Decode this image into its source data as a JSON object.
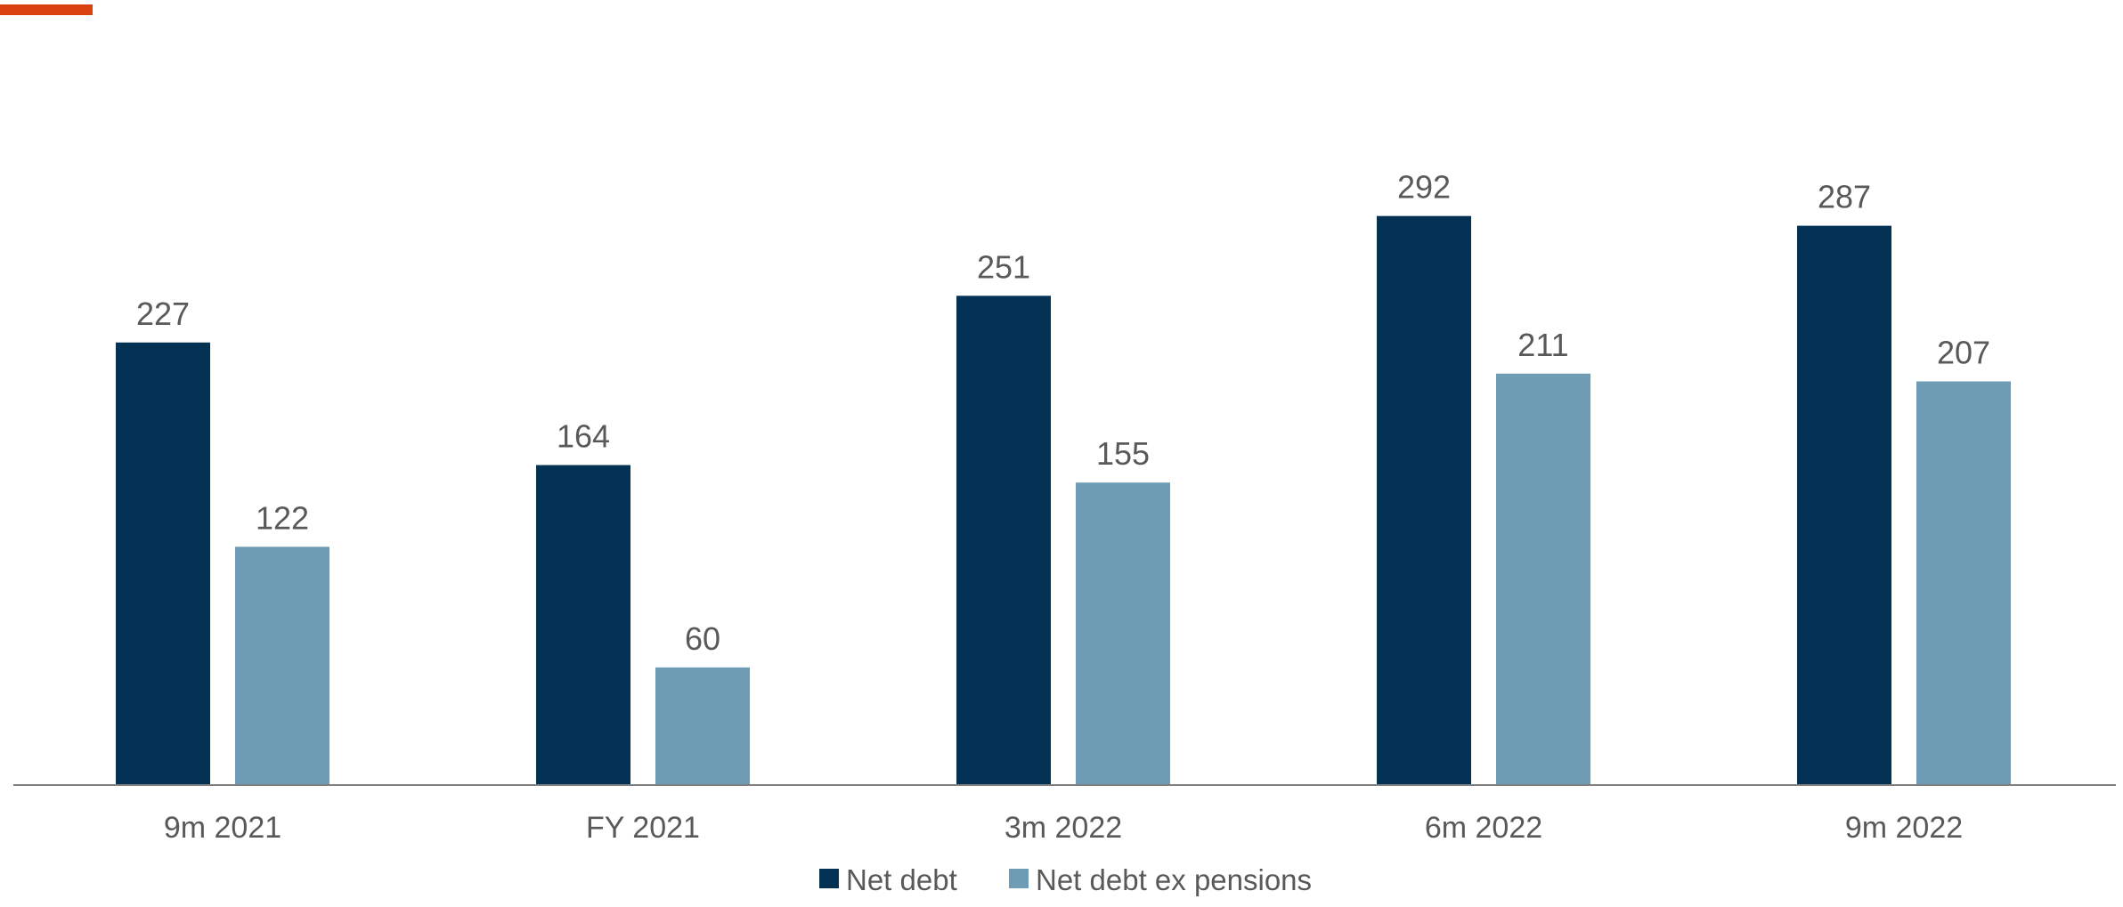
{
  "colors": {
    "accent": "#D9410F",
    "net_debt": "#033254",
    "net_debt_ex_pensions": "#6E9CB5",
    "axis": "#808080",
    "text": "#595959"
  },
  "chart_data": {
    "type": "bar",
    "categories": [
      "9m 2021",
      "FY 2021",
      "3m 2022",
      "6m 2022",
      "9m 2022"
    ],
    "series": [
      {
        "name": "Net debt",
        "values": [
          227,
          164,
          251,
          292,
          287
        ]
      },
      {
        "name": "Net debt ex pensions",
        "values": [
          122,
          60,
          155,
          211,
          207
        ]
      }
    ],
    "ylim": [
      0,
      320
    ],
    "grid": false,
    "legend": "bottom-center",
    "data_labels": true
  }
}
